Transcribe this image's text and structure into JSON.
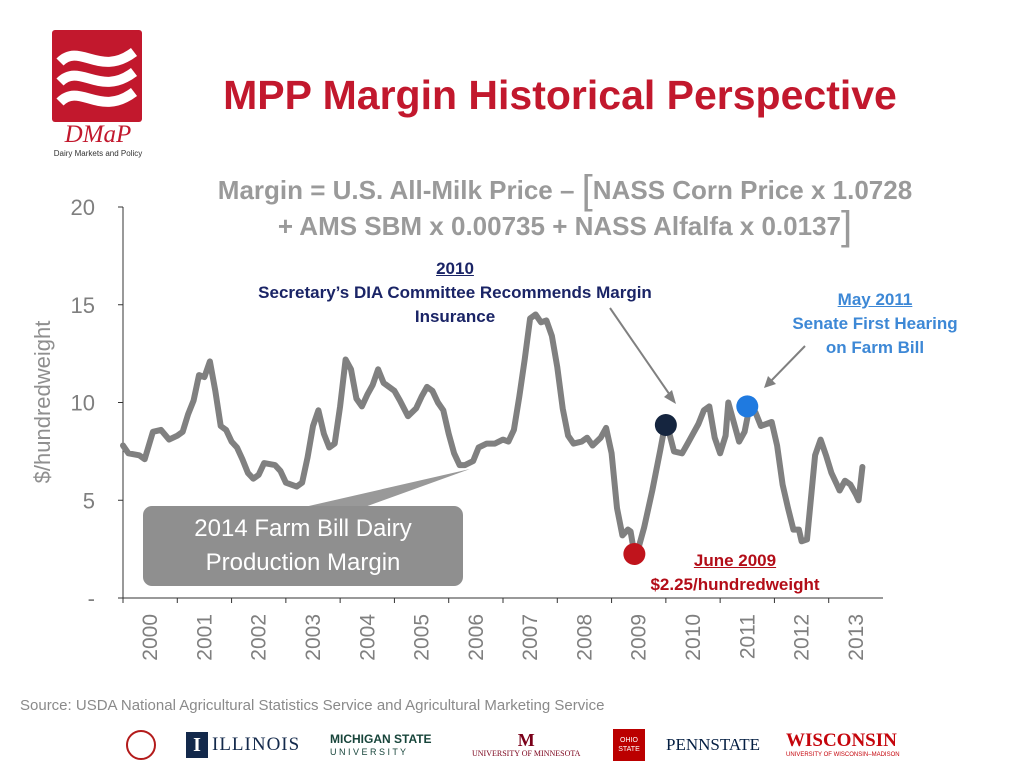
{
  "header": {
    "title": "MPP Margin Historical Perspective",
    "logo_text": "DMaP",
    "logo_subtitle": "Dairy Markets and Policy"
  },
  "formula": {
    "part1": "Margin = U.S. All-Milk Price – ",
    "part2": "NASS Corn Price x 1.0728",
    "part3": "+ AMS SBM x 0.00735 + NASS Alfalfa x 0.0137"
  },
  "annotations": {
    "a2010": {
      "year": "2010",
      "line1": "Secretary’s DIA Committee Recommends Margin",
      "line2": "Insurance"
    },
    "a2011": {
      "date": "May 2011",
      "line1": "Senate First Hearing",
      "line2": "on Farm Bill"
    },
    "a2009": {
      "date": "June 2009",
      "value": "$2.25/hundredweight"
    },
    "mpp_box": {
      "line1": "2014 Farm Bill Dairy",
      "line2": "Production Margin"
    }
  },
  "source": "Source: USDA National Agricultural Statistics Service and Agricultural Marketing Service",
  "universities": {
    "illinois": "ILLINOIS",
    "msu_line1": "MICHIGAN STATE",
    "msu_line2": "U N I V E R S I T Y",
    "minnesota": "UNIVERSITY OF MINNESOTA",
    "ohio": "OHIO STATE",
    "pennstate": "PENNSTATE",
    "wisconsin": "WISCONSIN",
    "wisconsin_sub": "UNIVERSITY OF WISCONSIN–MADISON"
  },
  "colors": {
    "brand_red": "#c2182d",
    "line_gray": "#808080",
    "navy": "#1a2466",
    "blue": "#1f7ae0",
    "red_dot": "#c0141c"
  },
  "chart_data": {
    "type": "line",
    "ylabel": "$/hundredweight",
    "ylim": [
      0,
      20
    ],
    "yticks": [
      {
        "v": 0,
        "label": "-"
      },
      {
        "v": 5,
        "label": "5"
      },
      {
        "v": 10,
        "label": "10"
      },
      {
        "v": 15,
        "label": "15"
      },
      {
        "v": 20,
        "label": "20"
      }
    ],
    "xlim": [
      2000,
      2014
    ],
    "xticks": [
      "2000",
      "2001",
      "2002",
      "2003",
      "2004",
      "2005",
      "2006",
      "2007",
      "2008",
      "2009",
      "2010",
      "2011",
      "2012",
      "2013"
    ],
    "series": [
      {
        "points": [
          [
            2000.0,
            7.8
          ],
          [
            2000.1,
            7.4
          ],
          [
            2000.3,
            7.3
          ],
          [
            2000.4,
            7.1
          ],
          [
            2000.55,
            8.5
          ],
          [
            2000.7,
            8.6
          ],
          [
            2000.85,
            8.1
          ],
          [
            2001.0,
            8.3
          ],
          [
            2001.1,
            8.5
          ],
          [
            2001.2,
            9.4
          ],
          [
            2001.3,
            10.1
          ],
          [
            2001.4,
            11.4
          ],
          [
            2001.5,
            11.3
          ],
          [
            2001.6,
            12.1
          ],
          [
            2001.7,
            10.6
          ],
          [
            2001.8,
            8.8
          ],
          [
            2001.9,
            8.6
          ],
          [
            2002.0,
            8.0
          ],
          [
            2002.1,
            7.7
          ],
          [
            2002.2,
            7.1
          ],
          [
            2002.3,
            6.4
          ],
          [
            2002.4,
            6.1
          ],
          [
            2002.5,
            6.3
          ],
          [
            2002.6,
            6.9
          ],
          [
            2002.8,
            6.8
          ],
          [
            2002.9,
            6.5
          ],
          [
            2003.0,
            5.9
          ],
          [
            2003.2,
            5.7
          ],
          [
            2003.3,
            5.9
          ],
          [
            2003.4,
            7.2
          ],
          [
            2003.5,
            8.8
          ],
          [
            2003.6,
            9.6
          ],
          [
            2003.7,
            8.4
          ],
          [
            2003.8,
            7.7
          ],
          [
            2003.9,
            7.9
          ],
          [
            2004.0,
            9.8
          ],
          [
            2004.1,
            12.2
          ],
          [
            2004.2,
            11.7
          ],
          [
            2004.3,
            10.2
          ],
          [
            2004.4,
            9.8
          ],
          [
            2004.5,
            10.4
          ],
          [
            2004.6,
            10.9
          ],
          [
            2004.7,
            11.7
          ],
          [
            2004.8,
            11.0
          ],
          [
            2005.0,
            10.6
          ],
          [
            2005.1,
            10.1
          ],
          [
            2005.25,
            9.3
          ],
          [
            2005.4,
            9.7
          ],
          [
            2005.5,
            10.3
          ],
          [
            2005.6,
            10.8
          ],
          [
            2005.7,
            10.6
          ],
          [
            2005.8,
            10.0
          ],
          [
            2005.9,
            9.6
          ],
          [
            2006.0,
            8.4
          ],
          [
            2006.1,
            7.4
          ],
          [
            2006.2,
            6.8
          ],
          [
            2006.3,
            6.8
          ],
          [
            2006.45,
            7.0
          ],
          [
            2006.55,
            7.7
          ],
          [
            2006.7,
            7.9
          ],
          [
            2006.85,
            7.9
          ],
          [
            2007.0,
            8.1
          ],
          [
            2007.1,
            8.0
          ],
          [
            2007.2,
            8.6
          ],
          [
            2007.3,
            10.3
          ],
          [
            2007.4,
            12.2
          ],
          [
            2007.5,
            14.3
          ],
          [
            2007.6,
            14.5
          ],
          [
            2007.7,
            14.1
          ],
          [
            2007.8,
            14.2
          ],
          [
            2007.9,
            13.4
          ],
          [
            2008.0,
            11.8
          ],
          [
            2008.1,
            9.7
          ],
          [
            2008.2,
            8.3
          ],
          [
            2008.3,
            7.9
          ],
          [
            2008.45,
            8.0
          ],
          [
            2008.55,
            8.2
          ],
          [
            2008.65,
            7.8
          ],
          [
            2008.8,
            8.2
          ],
          [
            2008.9,
            8.7
          ],
          [
            2009.0,
            7.4
          ],
          [
            2009.1,
            4.6
          ],
          [
            2009.2,
            3.2
          ],
          [
            2009.3,
            3.5
          ],
          [
            2009.35,
            3.4
          ],
          [
            2009.42,
            2.25
          ],
          [
            2009.5,
            2.6
          ],
          [
            2009.6,
            3.6
          ],
          [
            2009.75,
            5.5
          ],
          [
            2009.9,
            7.6
          ],
          [
            2010.0,
            9.1
          ],
          [
            2010.15,
            7.5
          ],
          [
            2010.3,
            7.4
          ],
          [
            2010.4,
            7.9
          ],
          [
            2010.5,
            8.4
          ],
          [
            2010.6,
            8.9
          ],
          [
            2010.7,
            9.6
          ],
          [
            2010.8,
            9.8
          ],
          [
            2010.9,
            8.2
          ],
          [
            2011.0,
            7.4
          ],
          [
            2011.1,
            8.3
          ],
          [
            2011.15,
            10.0
          ],
          [
            2011.25,
            9.0
          ],
          [
            2011.35,
            8.0
          ],
          [
            2011.45,
            8.5
          ],
          [
            2011.55,
            9.9
          ],
          [
            2011.65,
            9.5
          ],
          [
            2011.75,
            8.8
          ],
          [
            2011.85,
            8.9
          ],
          [
            2011.95,
            9.0
          ],
          [
            2012.05,
            7.8
          ],
          [
            2012.15,
            5.8
          ],
          [
            2012.25,
            4.6
          ],
          [
            2012.35,
            3.5
          ],
          [
            2012.45,
            3.5
          ],
          [
            2012.5,
            2.9
          ],
          [
            2012.6,
            3.0
          ],
          [
            2012.75,
            7.3
          ],
          [
            2012.85,
            8.1
          ],
          [
            2012.95,
            7.3
          ],
          [
            2013.05,
            6.4
          ],
          [
            2013.15,
            5.8
          ],
          [
            2013.2,
            5.5
          ],
          [
            2013.3,
            6.0
          ],
          [
            2013.4,
            5.8
          ],
          [
            2013.5,
            5.3
          ],
          [
            2013.55,
            5.0
          ],
          [
            2013.62,
            6.7
          ]
        ]
      }
    ],
    "markers": [
      {
        "x": 2009.42,
        "y": 2.25,
        "color": "#c0141c",
        "label": "June 2009"
      },
      {
        "x": 2010.0,
        "y": 8.85,
        "color": "#15253f",
        "label": "2010"
      },
      {
        "x": 2011.5,
        "y": 9.8,
        "color": "#1f7ae0",
        "label": "May 2011"
      }
    ]
  }
}
